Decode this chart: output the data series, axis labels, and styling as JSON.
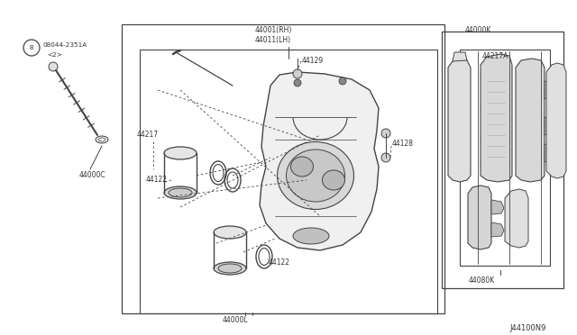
{
  "bg_color": "#ffffff",
  "line_color": "#444444",
  "text_color": "#333333",
  "diagram_id": "J44100N9",
  "parts": {
    "bolt_label": "08044-2351A",
    "bolt_sub": "<2>",
    "p44217": "44217",
    "p44000C": "44000C",
    "p44001RH": "44001(RH)",
    "p44011LH": "44011(LH)",
    "p44129": "44129",
    "p44128": "44128",
    "p44122": "44122",
    "p44122b": "44122",
    "p44000L": "44000L",
    "p44000K": "44000K",
    "p44217A": "44217A",
    "p44080K": "44080K"
  }
}
